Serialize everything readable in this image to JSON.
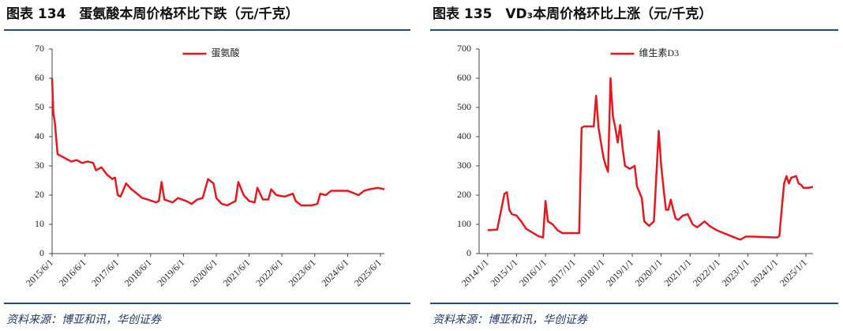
{
  "chart_data": [
    {
      "type": "line",
      "title": "图表 134　蛋氨酸本周价格环比下跌（元/千克）",
      "source": "资料来源：博亚和讯，华创证券",
      "x": [
        "2015/6/1",
        "2015/6/15",
        "2015/7/1",
        "2015/8/1",
        "2015/10/1",
        "2016/1/1",
        "2016/3/1",
        "2016/5/1",
        "2016/7/1",
        "2016/9/1",
        "2016/10/1",
        "2016/12/1",
        "2017/2/1",
        "2017/4/1",
        "2017/5/1",
        "2017/6/1",
        "2017/7/1",
        "2017/9/1",
        "2017/11/1",
        "2018/1/1",
        "2018/3/1",
        "2018/5/1",
        "2018/8/1",
        "2018/9/1",
        "2018/10/1",
        "2018/11/1",
        "2019/2/1",
        "2019/4/1",
        "2019/7/1",
        "2019/9/1",
        "2019/11/1",
        "2020/1/1",
        "2020/3/1",
        "2020/5/1",
        "2020/6/1",
        "2020/8/1",
        "2020/10/1",
        "2021/1/1",
        "2021/2/1",
        "2021/4/1",
        "2021/6/1",
        "2021/8/1",
        "2021/9/1",
        "2021/11/1",
        "2022/1/1",
        "2022/2/1",
        "2022/4/1",
        "2022/7/1",
        "2022/10/1",
        "2022/11/1",
        "2023/1/1",
        "2023/5/1",
        "2023/7/1",
        "2023/8/1",
        "2023/10/1",
        "2023/12/1",
        "2024/6/1",
        "2024/10/1",
        "2024/12/1",
        "2025/2/1",
        "2025/5/1",
        "2025/7/15"
      ],
      "series": [
        {
          "name": "蛋氨酸",
          "color": "#e3191f",
          "values": [
            60,
            48,
            45,
            34,
            33,
            31.5,
            32,
            31,
            31.5,
            31,
            28.5,
            29.5,
            27,
            25.5,
            26,
            20,
            19.5,
            24,
            22,
            20.5,
            19,
            18.5,
            17.5,
            18,
            24.5,
            18.5,
            17.5,
            19,
            18,
            17,
            18.5,
            19,
            25.5,
            24,
            19,
            17,
            16.5,
            18,
            24.5,
            20,
            18,
            17.5,
            22.5,
            18.5,
            18.5,
            22,
            20,
            19.5,
            20.5,
            18,
            16.5,
            16.5,
            17,
            20.5,
            20,
            21.5,
            21.5,
            20,
            21.5,
            22,
            22.5,
            22
          ]
        }
      ],
      "xlim": [
        "2015/6/1",
        "2025/7/15"
      ],
      "xticks": [
        "2015/6/1",
        "2016/6/1",
        "2017/6/1",
        "2018/6/1",
        "2019/6/1",
        "2020/6/1",
        "2021/6/1",
        "2022/6/1",
        "2023/6/1",
        "2024/6/1",
        "2025/6/1"
      ],
      "ylim": [
        0,
        70
      ],
      "yticks": [
        0,
        10,
        20,
        30,
        40,
        50,
        60,
        70
      ],
      "legend": "upper center",
      "grid": false
    },
    {
      "type": "line",
      "title": "图表 135　VD₃本周价格环比上涨（元/千克）",
      "source": "资料来源：博亚和讯，华创证券",
      "x": [
        "2014/1/1",
        "2014/5/1",
        "2014/8/1",
        "2014/9/1",
        "2014/10/1",
        "2014/11/1",
        "2015/1/1",
        "2015/3/1",
        "2015/5/1",
        "2015/8/1",
        "2015/10/1",
        "2015/12/1",
        "2016/1/1",
        "2016/2/1",
        "2016/4/1",
        "2016/6/1",
        "2016/8/1",
        "2017/3/1",
        "2017/4/1",
        "2017/5/1",
        "2017/9/1",
        "2017/10/1",
        "2017/11/1",
        "2018/1/1",
        "2018/2/1",
        "2018/3/1",
        "2018/4/1",
        "2018/5/1",
        "2018/6/1",
        "2018/7/1",
        "2018/8/1",
        "2018/9/1",
        "2018/10/1",
        "2018/12/1",
        "2019/2/1",
        "2019/3/1",
        "2019/5/1",
        "2019/6/1",
        "2019/8/1",
        "2019/10/1",
        "2019/12/1",
        "2020/1/1",
        "2020/2/1",
        "2020/3/1",
        "2020/4/1",
        "2020/5/1",
        "2020/6/1",
        "2020/7/1",
        "2020/8/1",
        "2020/10/1",
        "2020/12/1",
        "2021/2/1",
        "2021/4/1",
        "2021/7/1",
        "2021/9/1",
        "2021/12/1",
        "2022/3/1",
        "2022/6/1",
        "2022/9/1",
        "2022/10/1",
        "2022/12/1",
        "2023/3/1",
        "2024/1/1",
        "2024/2/1",
        "2024/3/1",
        "2024/4/1",
        "2024/5/1",
        "2024/6/1",
        "2024/7/1",
        "2024/9/1",
        "2024/10/1",
        "2024/11/1",
        "2024/12/1",
        "2025/2/1",
        "2025/4/1"
      ],
      "series": [
        {
          "name": "维生素D3",
          "color": "#e3191f",
          "values": [
            80,
            82,
            205,
            210,
            150,
            135,
            130,
            110,
            85,
            70,
            60,
            55,
            180,
            110,
            100,
            80,
            70,
            70,
            430,
            435,
            435,
            540,
            430,
            330,
            300,
            280,
            600,
            470,
            430,
            380,
            440,
            360,
            300,
            290,
            300,
            230,
            190,
            110,
            95,
            110,
            420,
            300,
            220,
            150,
            150,
            185,
            150,
            120,
            115,
            130,
            135,
            100,
            90,
            110,
            95,
            80,
            70,
            60,
            50,
            48,
            58,
            58,
            55,
            60,
            150,
            240,
            265,
            240,
            260,
            265,
            240,
            235,
            225,
            225,
            228
          ]
        }
      ],
      "xlim": [
        "2013/9/15",
        "2025/4/1"
      ],
      "xticks": [
        "2014/1/1",
        "2015/1/1",
        "2016/1/1",
        "2017/1/1",
        "2018/1/1",
        "2019/1/1",
        "2020/1/1",
        "2021/1/1",
        "2022/1/1",
        "2023/1/1",
        "2024/1/1",
        "2025/1/1"
      ],
      "ylim": [
        0,
        700
      ],
      "yticks": [
        0,
        100,
        200,
        300,
        400,
        500,
        600,
        700
      ],
      "legend": "upper center",
      "grid": false
    }
  ]
}
